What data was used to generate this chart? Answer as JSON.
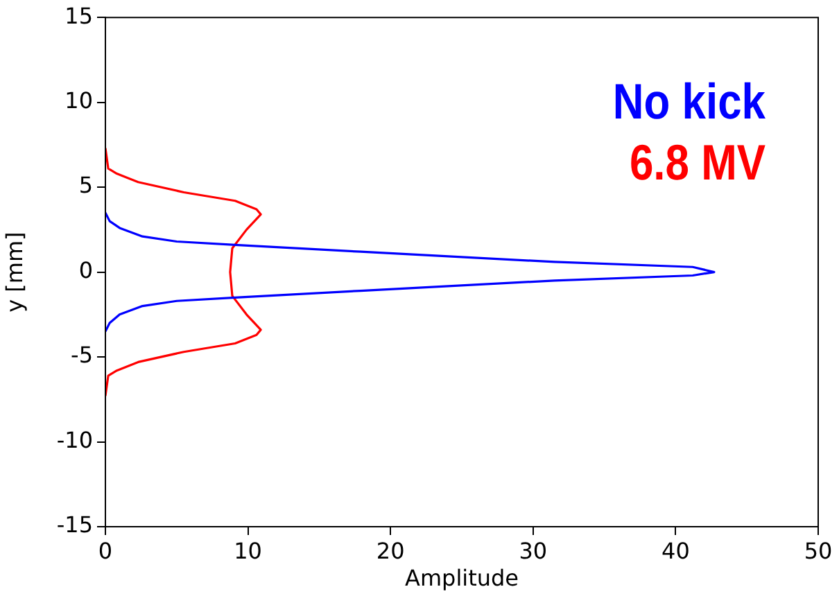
{
  "chart_data": {
    "type": "line",
    "xlabel": "Amplitude",
    "ylabel": "y [mm]",
    "xlim": [
      0,
      50
    ],
    "ylim": [
      -15,
      15
    ],
    "xticks": [
      0,
      10,
      20,
      30,
      40,
      50
    ],
    "yticks": [
      -15,
      -10,
      -5,
      0,
      5,
      10,
      15
    ],
    "grid": false,
    "legend": "top right",
    "marker": "none",
    "line_style": "solid",
    "series": [
      {
        "name": "No kick",
        "color": "#0000ff",
        "x": [
          0,
          0.3,
          1,
          2.6,
          5,
          9.1,
          17.9,
          31.5,
          41.2,
          42.7,
          41.2,
          31.5,
          17.9,
          9.1,
          5,
          2.6,
          1,
          0.3,
          0
        ],
        "values": [
          3.5,
          3.0,
          2.6,
          2.1,
          1.8,
          1.6,
          1.2,
          0.6,
          0.3,
          0,
          -0.2,
          -0.5,
          -1.1,
          -1.5,
          -1.7,
          -2.0,
          -2.5,
          -3.0,
          -3.5
        ]
      },
      {
        "name": "6.8 MV",
        "color": "#ff0000",
        "x": [
          0,
          0.2,
          0.8,
          2.3,
          5.5,
          9.1,
          10.6,
          10.9,
          9.9,
          8.9,
          8.75,
          8.9,
          9.9,
          10.9,
          10.6,
          9.1,
          5.5,
          2.3,
          0.8,
          0.2,
          0
        ],
        "values": [
          7.3,
          6.1,
          5.8,
          5.3,
          4.7,
          4.2,
          3.7,
          3.4,
          2.5,
          1.4,
          0,
          -1.4,
          -2.5,
          -3.4,
          -3.7,
          -4.2,
          -4.7,
          -5.3,
          -5.8,
          -6.1,
          -7.3
        ]
      }
    ]
  }
}
